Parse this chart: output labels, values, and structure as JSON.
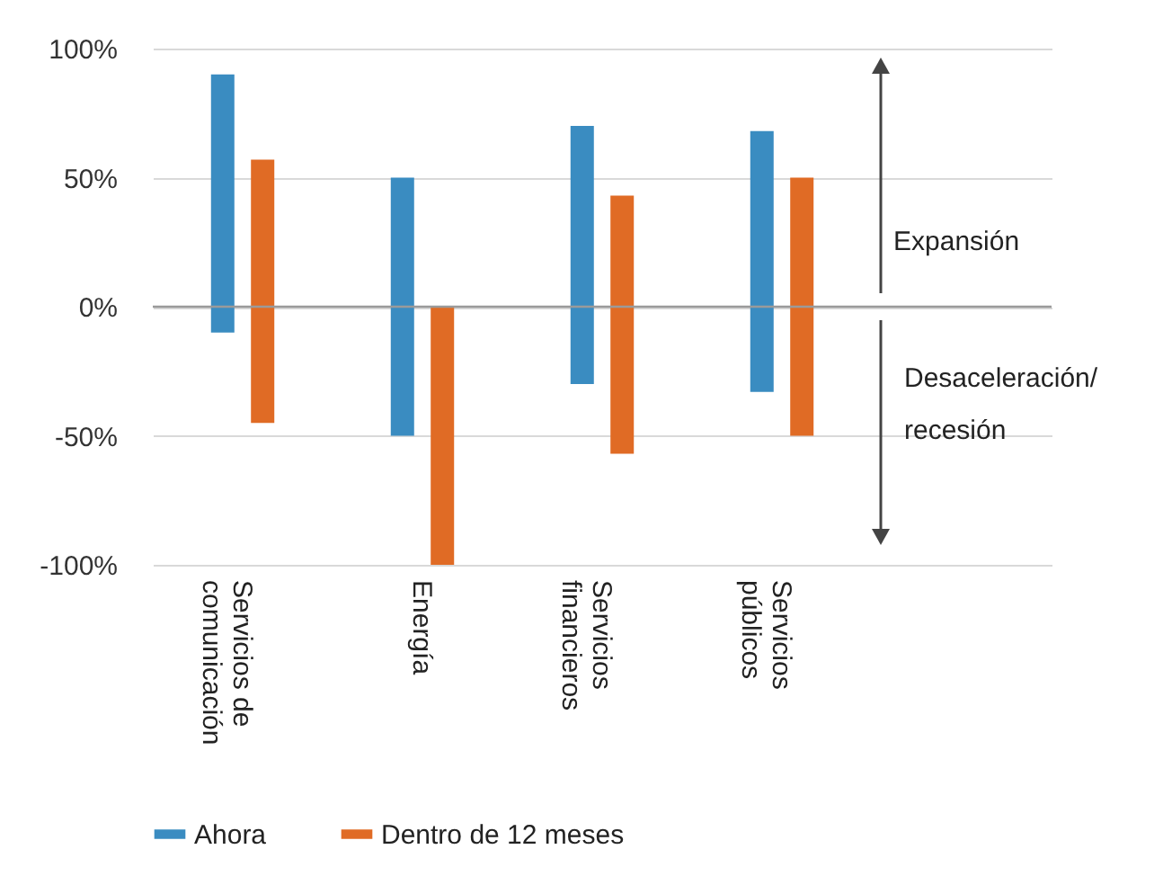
{
  "chart_data": {
    "type": "bar",
    "categories": [
      "Servicios de comunicación",
      "Energía",
      "Servicios financieros",
      "Servicios públicos"
    ],
    "series": [
      {
        "name": "Ahora",
        "color": "#3a8cc1",
        "values": [
          100,
          100,
          100,
          101
        ],
        "base": [
          -10,
          -50,
          -30,
          -33
        ]
      },
      {
        "name": "Dentro de 12 meses",
        "color": "#e06b25",
        "values": [
          102,
          100,
          100,
          100
        ],
        "base": [
          -45,
          -100,
          -57,
          -50
        ]
      }
    ],
    "ylim": [
      -100,
      100
    ],
    "yticks": [
      {
        "value": -100,
        "label": "-100%"
      },
      {
        "value": -50,
        "label": "-50%"
      },
      {
        "value": 0,
        "label": "0%"
      },
      {
        "value": 50,
        "label": "50%"
      },
      {
        "value": 100,
        "label": "100%"
      }
    ],
    "grid": "y",
    "legend": "bottom",
    "ref_lines": [
      {
        "axis": "y",
        "value": 0,
        "color": "#9a9a9a"
      }
    ],
    "annotations": [
      "Expansión",
      "Desaceleración/ recesión"
    ]
  }
}
